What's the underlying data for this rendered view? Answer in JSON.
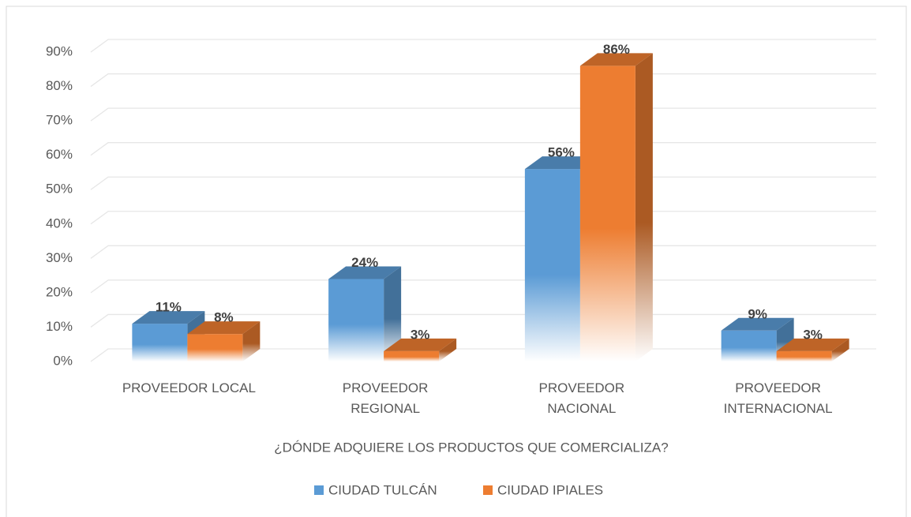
{
  "chart_data": {
    "type": "bar3d",
    "x_label": "¿DÓNDE ADQUIERE LOS PRODUCTOS QUE COMERCIALIZA?",
    "categories": [
      "PROVEEDOR LOCAL",
      "PROVEEDOR REGIONAL",
      "PROVEEDOR NACIONAL",
      "PROVEEDOR INTERNACIONAL"
    ],
    "series": [
      {
        "name": "CIUDAD TULCÁN",
        "color": "#5b9bd5",
        "values": [
          11,
          24,
          56,
          9
        ],
        "value_labels": [
          "11%",
          "24%",
          "56%",
          "9%"
        ]
      },
      {
        "name": "CIUDAD IPIALES",
        "color": "#ed7d31",
        "values": [
          8,
          3,
          86,
          3
        ],
        "value_labels": [
          "8%",
          "3%",
          "86%",
          "3%"
        ]
      }
    ],
    "ylim": [
      0,
      90
    ],
    "yticks": [
      {
        "value": 0,
        "label": "0%"
      },
      {
        "value": 10,
        "label": "10%"
      },
      {
        "value": 20,
        "label": "20%"
      },
      {
        "value": 30,
        "label": "30%"
      },
      {
        "value": 40,
        "label": "40%"
      },
      {
        "value": 50,
        "label": "50%"
      },
      {
        "value": 60,
        "label": "60%"
      },
      {
        "value": 70,
        "label": "70%"
      },
      {
        "value": 80,
        "label": "80%"
      },
      {
        "value": 90,
        "label": "90%"
      }
    ],
    "grid": true,
    "legend": "bottom"
  }
}
